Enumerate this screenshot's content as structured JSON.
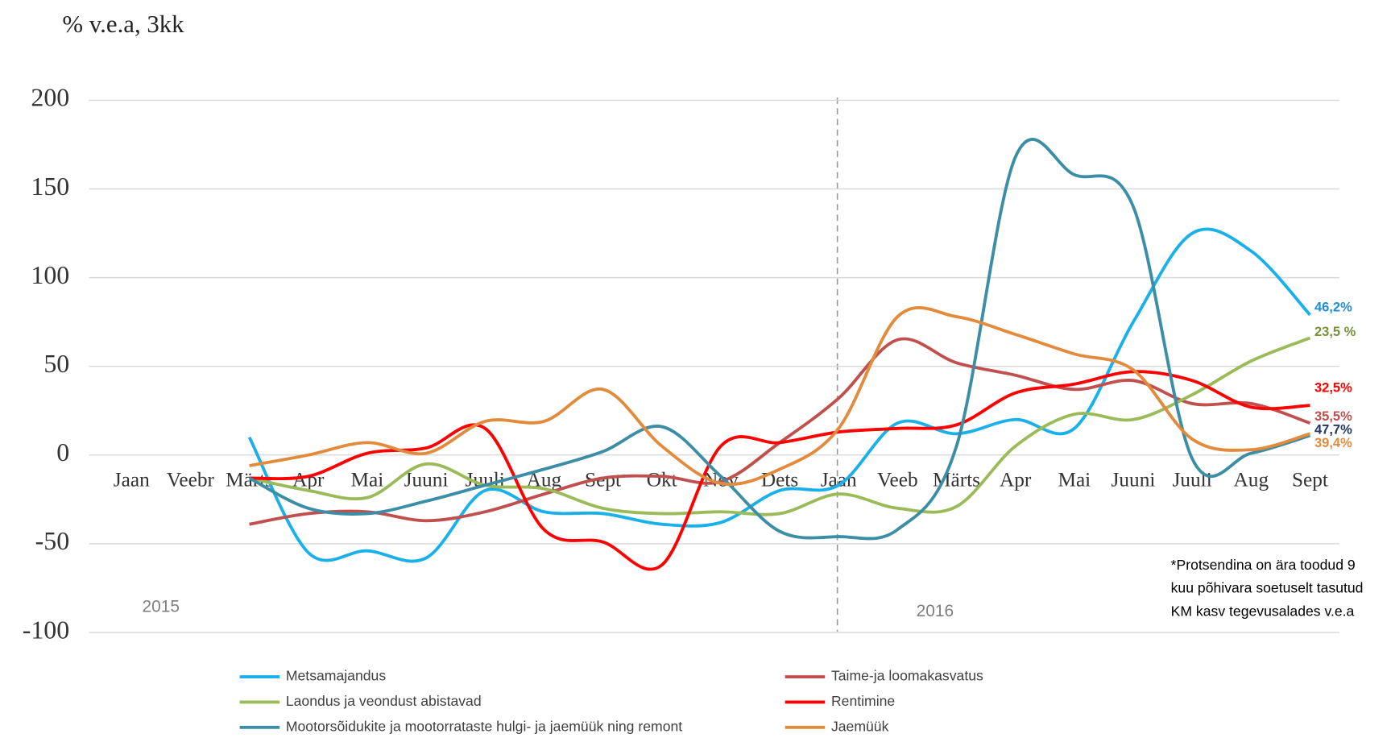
{
  "chart_data": {
    "type": "line",
    "y_axis_label": "% v.e.a, 3kk",
    "categories": [
      "Jaan",
      "Veebr",
      "Märts",
      "Apr",
      "Mai",
      "Juuni",
      "Juuli",
      "Aug",
      "Sept",
      "Okt",
      "Nov",
      "Dets",
      "Jaan",
      "Veeb",
      "Märts",
      "Apr",
      "Mai",
      "Juuni",
      "Juuli",
      "Aug",
      "Sept"
    ],
    "year_labels": [
      "2015",
      "2016"
    ],
    "note": [
      "*Protsendina on ära toodud 9",
      "kuu põhivara soetuselt tasutud",
      "KM kasv tegevusalades v.e.a"
    ],
    "ylim": [
      -100,
      200
    ],
    "yticks": [
      -100,
      -50,
      0,
      50,
      100,
      150,
      200
    ],
    "grid": true,
    "series": [
      {
        "name": "Metsamajandus",
        "color": "#1ab0ea",
        "end_label": "46,2%",
        "end_label_color": "#1e8fd5",
        "values": [
          null,
          null,
          10,
          -55,
          -54,
          -58,
          -20,
          -32,
          -33,
          -39,
          -38,
          -20,
          -17,
          18,
          12,
          20,
          15,
          75,
          125,
          115,
          79
        ]
      },
      {
        "name": "Taime-ja loomakasvatus",
        "color": "#c0504d",
        "end_label": "35,5%",
        "end_label_color": "#c0504d",
        "values": [
          null,
          null,
          -39,
          -33,
          -32,
          -37,
          -32,
          -22,
          -13,
          -12,
          -15,
          7,
          32,
          65,
          52,
          45,
          37,
          42,
          29,
          29,
          18
        ]
      },
      {
        "name": "Laondus ja veondust abistavad",
        "color": "#9bbb59",
        "end_label": "23,5 %",
        "end_label_color": "#77933c",
        "values": [
          null,
          null,
          -13,
          -20,
          -24,
          -5,
          -17,
          -19,
          -30,
          -33,
          -32,
          -33,
          -22,
          -30,
          -29,
          5,
          23,
          20,
          34,
          53,
          66
        ]
      },
      {
        "name": "Rentimine",
        "color": "#ff0000",
        "end_label": "32,5%",
        "end_label_color": "#ff0000",
        "values": [
          null,
          null,
          -13,
          -12,
          1,
          4,
          15,
          -42,
          -49,
          -62,
          5,
          7,
          13,
          15,
          17,
          35,
          40,
          47,
          42,
          27,
          28
        ]
      },
      {
        "name": "Mootorsõidukite ja mootorrataste hulgi- ja jaemüük ning remont",
        "color": "#3b8ea5",
        "end_label": "47,7%",
        "end_label_color": "#1f3864",
        "values": [
          null,
          null,
          -13,
          -30,
          -33,
          -26,
          -17,
          -8,
          2,
          16,
          -12,
          -43,
          -46,
          -42,
          5,
          168,
          158,
          140,
          -2,
          1,
          11
        ]
      },
      {
        "name": "Jaemüük",
        "color": "#e38b3c",
        "end_label": "39,4%",
        "end_label_color": "#e38b3c",
        "values": [
          null,
          null,
          -6,
          0,
          7,
          1,
          19,
          19,
          37,
          5,
          -16,
          -8,
          15,
          78,
          78,
          68,
          57,
          48,
          9,
          3,
          12
        ]
      }
    ]
  }
}
